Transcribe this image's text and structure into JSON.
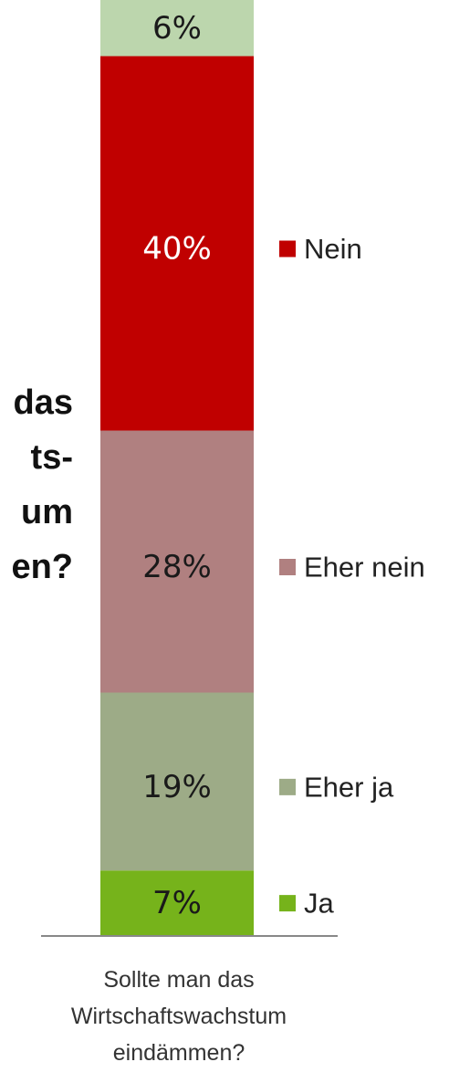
{
  "chart_data": {
    "type": "bar",
    "stacked": true,
    "categories": [
      "Sollte man das Wirtschaftswachstum eindämmen?"
    ],
    "category_label_lines": [
      "Sollte man das",
      "Wirtschaftswachstum",
      "eindämmen?"
    ],
    "side_title_lines": [
      "das",
      "ts-",
      "um",
      "en?"
    ],
    "ylim": [
      0,
      100
    ],
    "legend_position": "right",
    "series": [
      {
        "name": "Ja",
        "values": [
          7
        ],
        "label": "7%",
        "color": "#76b31b",
        "label_color": "#1a1a1a",
        "show_legend": true
      },
      {
        "name": "Eher ja",
        "values": [
          19
        ],
        "label": "19%",
        "color": "#9dab87",
        "label_color": "#1a1a1a",
        "show_legend": true
      },
      {
        "name": "Eher nein",
        "values": [
          28
        ],
        "label": "28%",
        "color": "#b08080",
        "label_color": "#1a1a1a",
        "show_legend": true
      },
      {
        "name": "Nein",
        "values": [
          40
        ],
        "label": "40%",
        "color": "#c00000",
        "label_color": "#ffffff",
        "show_legend": true
      },
      {
        "name": "",
        "values": [
          6
        ],
        "label": "6%",
        "color": "#bcd6ad",
        "label_color": "#1a1a1a",
        "show_legend": false
      }
    ]
  }
}
